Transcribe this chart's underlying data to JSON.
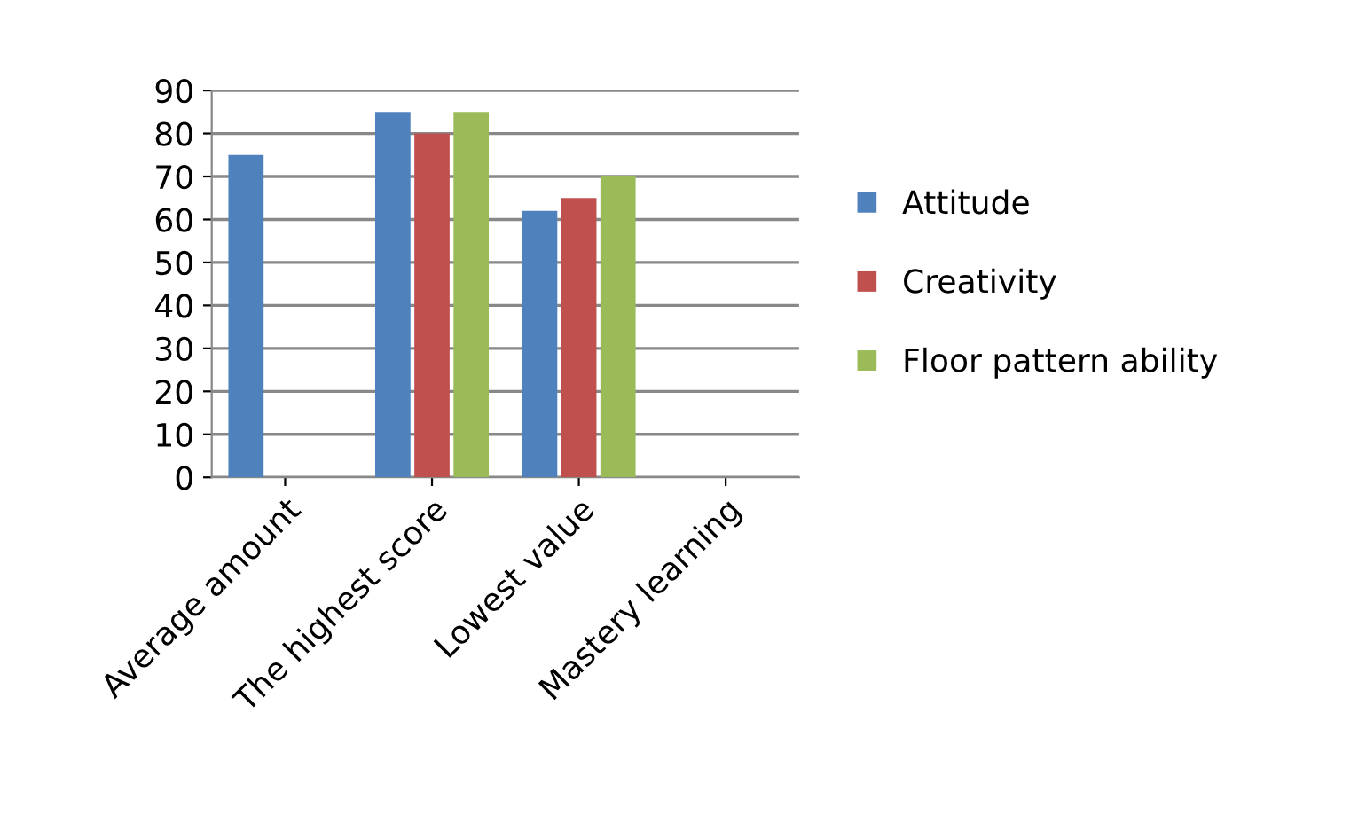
{
  "chart_data": {
    "type": "bar",
    "categories": [
      "Average amount",
      "The highest score",
      "Lowest value",
      "Mastery learning"
    ],
    "series": [
      {
        "name": "Attitude",
        "color": "#4f81bd",
        "values": [
          75,
          85,
          62,
          null
        ]
      },
      {
        "name": "Creativity",
        "color": "#c0504d",
        "values": [
          null,
          80,
          65,
          null
        ]
      },
      {
        "name": "Floor pattern ability",
        "color": "#9bbb59",
        "values": [
          null,
          85,
          70,
          null
        ]
      }
    ],
    "ylim": [
      0,
      90
    ],
    "yticks": [
      0,
      10,
      20,
      30,
      40,
      50,
      60,
      70,
      80,
      90
    ],
    "grid": "y",
    "legend": "right"
  }
}
